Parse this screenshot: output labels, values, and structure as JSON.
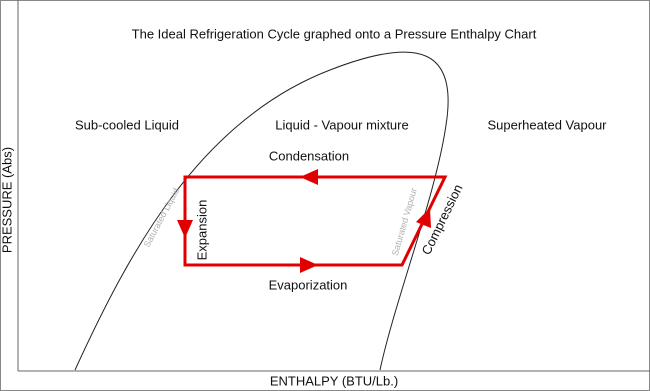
{
  "title": "The Ideal Refrigeration Cycle graphed onto a Pressure Enthalpy Chart",
  "regions": {
    "subcooled": "Sub-cooled Liquid",
    "mixture": "Liquid - Vapour mixture",
    "superheated": "Superheated Vapour"
  },
  "processes": {
    "condensation": "Condensation",
    "evaporization": "Evaporization",
    "expansion": "Expansion",
    "compression": "Compression"
  },
  "curves": {
    "saturated_liquid": "Saturated Liquid",
    "saturated_vapour": "Saturated Vapour"
  },
  "axes": {
    "x_label": "ENTHALPY (BTU/Lb.)",
    "y_label": "PRESSURE (Abs)"
  }
}
